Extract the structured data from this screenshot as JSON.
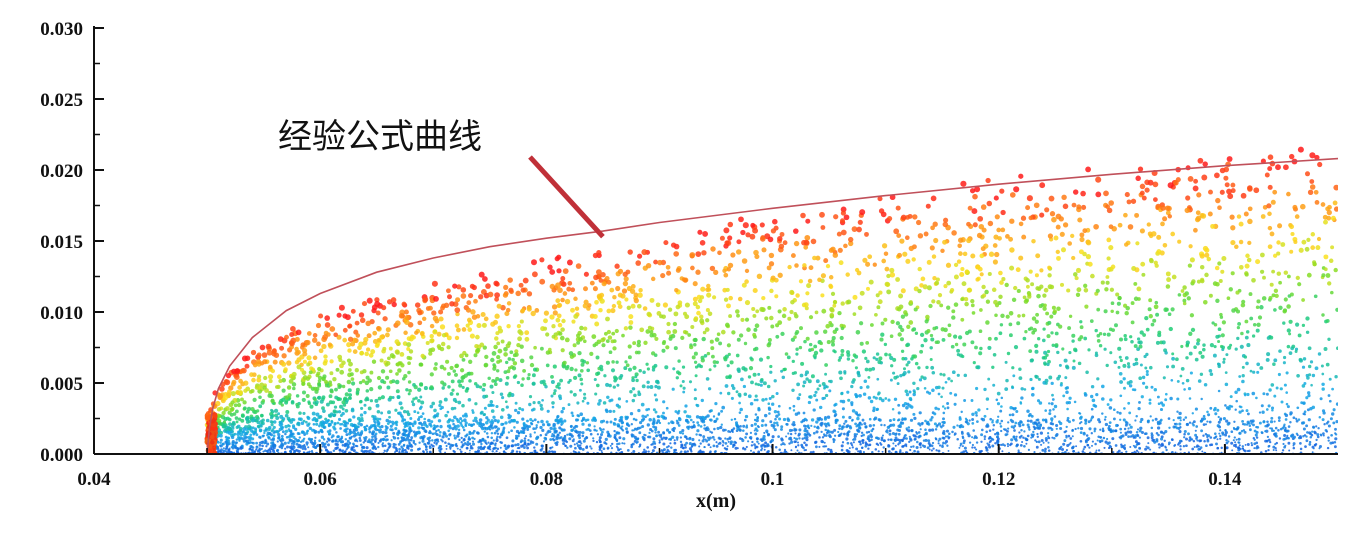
{
  "chart_data": {
    "type": "scatter",
    "title": "",
    "xlabel": "x(m)",
    "ylabel": "",
    "xlim": [
      0.04,
      0.15
    ],
    "ylim": [
      0,
      0.03
    ],
    "x_ticks": [
      "0.04",
      "0.06",
      "0.08",
      "0.1",
      "0.12",
      "0.14"
    ],
    "x_tick_values": [
      0.04,
      0.06,
      0.08,
      0.1,
      0.12,
      0.14
    ],
    "y_ticks": [
      "0.000",
      "0.005",
      "0.010",
      "0.015",
      "0.020",
      "0.025",
      "0.030"
    ],
    "y_tick_values": [
      0,
      0.005,
      0.01,
      0.015,
      0.02,
      0.025,
      0.03
    ],
    "grid": false,
    "colors": {
      "curve": "#c0505a",
      "pointer": "#c03038",
      "axis": "#111111",
      "scale_low": "#1565e0",
      "scale_mid": "#22cc44",
      "scale_high": "#ff1a1a"
    },
    "annotation": {
      "text": "经验公式曲线",
      "target_x": 0.085,
      "target_y": 0.0153
    },
    "series": [
      {
        "name": "",
        "kind": "line",
        "x": [
          0.05,
          0.0502,
          0.0505,
          0.051,
          0.052,
          0.054,
          0.057,
          0.06,
          0.065,
          0.07,
          0.075,
          0.08,
          0.085,
          0.09,
          0.1,
          0.11,
          0.12,
          0.13,
          0.14,
          0.15
        ],
        "y": [
          0.0,
          0.0018,
          0.0032,
          0.0046,
          0.0062,
          0.0082,
          0.0101,
          0.0113,
          0.0128,
          0.0138,
          0.0146,
          0.0152,
          0.0157,
          0.0163,
          0.0173,
          0.0182,
          0.019,
          0.0197,
          0.0203,
          0.0208
        ]
      },
      {
        "name": "",
        "kind": "particles",
        "x_start": 0.05,
        "x_end": 0.15,
        "envelope_x": [
          0.05,
          0.051,
          0.052,
          0.055,
          0.06,
          0.07,
          0.08,
          0.09,
          0.1,
          0.11,
          0.12,
          0.13,
          0.14,
          0.15
        ],
        "envelope_y": [
          0.0028,
          0.0048,
          0.0058,
          0.0078,
          0.0097,
          0.0117,
          0.0133,
          0.0152,
          0.0165,
          0.0177,
          0.0187,
          0.0197,
          0.0207,
          0.0215
        ],
        "core_band_y": [
          0.0004,
          0.0025
        ]
      }
    ]
  }
}
